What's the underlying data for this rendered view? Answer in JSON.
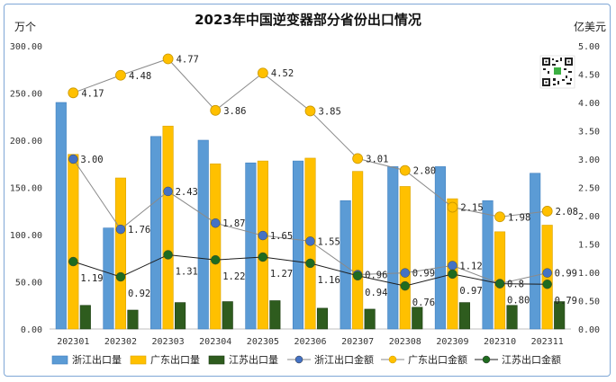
{
  "chart_data": {
    "type": "bar",
    "title": "2023年中国逆变器部分省份出口情况",
    "left_unit": "万个",
    "right_unit": "亿美元",
    "categories": [
      "202301",
      "202302",
      "202303",
      "202304",
      "202305",
      "202306",
      "202307",
      "202308",
      "202309",
      "202310",
      "202311"
    ],
    "y_left": {
      "min": 0,
      "max": 300,
      "ticks": [
        "0.00",
        "50.00",
        "100.00",
        "150.00",
        "200.00",
        "250.00",
        "300.00"
      ]
    },
    "y_right": {
      "min": 0,
      "max": 5,
      "ticks": [
        "0.00",
        "0.50",
        "1.00",
        "1.50",
        "2.00",
        "2.50",
        "3.00",
        "3.50",
        "4.00",
        "4.50",
        "5.00"
      ]
    },
    "bar_series": [
      {
        "name": "浙江出口量",
        "color": "#5b9bd5",
        "values": [
          240,
          107,
          204,
          200,
          176,
          178,
          136,
          172,
          172,
          136,
          165
        ]
      },
      {
        "name": "广东出口量",
        "color": "#ffc000",
        "values": [
          185,
          160,
          215,
          175,
          178,
          181,
          167,
          151,
          138,
          103,
          110
        ]
      },
      {
        "name": "江苏出口量",
        "color": "#2e5c1e",
        "values": [
          25,
          20,
          28,
          29,
          30,
          22,
          21,
          23,
          28,
          25,
          29
        ]
      }
    ],
    "line_series": [
      {
        "name": "浙江出口金额",
        "color": "#4472c4",
        "values": [
          3.0,
          1.76,
          2.43,
          1.87,
          1.65,
          1.55,
          0.96,
          0.99,
          1.12,
          0.8,
          0.99
        ],
        "labels": [
          "3.00",
          "1.76",
          "2.43",
          "1.87",
          "1.65",
          "1.55",
          "0.96",
          "0.99",
          "1.12",
          "0.8",
          "0.99"
        ]
      },
      {
        "name": "广东出口金额",
        "color": "#ffc000",
        "values": [
          4.17,
          4.48,
          4.77,
          3.86,
          4.52,
          3.85,
          3.01,
          2.8,
          2.15,
          1.98,
          2.08
        ],
        "labels": [
          "4.17",
          "4.48",
          "4.77",
          "3.86",
          "4.52",
          "3.85",
          "3.01",
          "2.80",
          "2.15",
          "1.98",
          "2.08"
        ]
      },
      {
        "name": "江苏出口金额",
        "color": "#1f6b1f",
        "values": [
          1.19,
          0.92,
          1.31,
          1.22,
          1.27,
          1.16,
          0.94,
          0.76,
          0.97,
          0.8,
          0.79
        ],
        "labels": [
          "1.19",
          "0.92",
          "1.31",
          "1.22",
          "1.27",
          "1.16",
          "0.94",
          "0.76",
          "0.97",
          "0.80",
          "0.79"
        ]
      }
    ],
    "grid": false,
    "legend_position": "bottom"
  }
}
